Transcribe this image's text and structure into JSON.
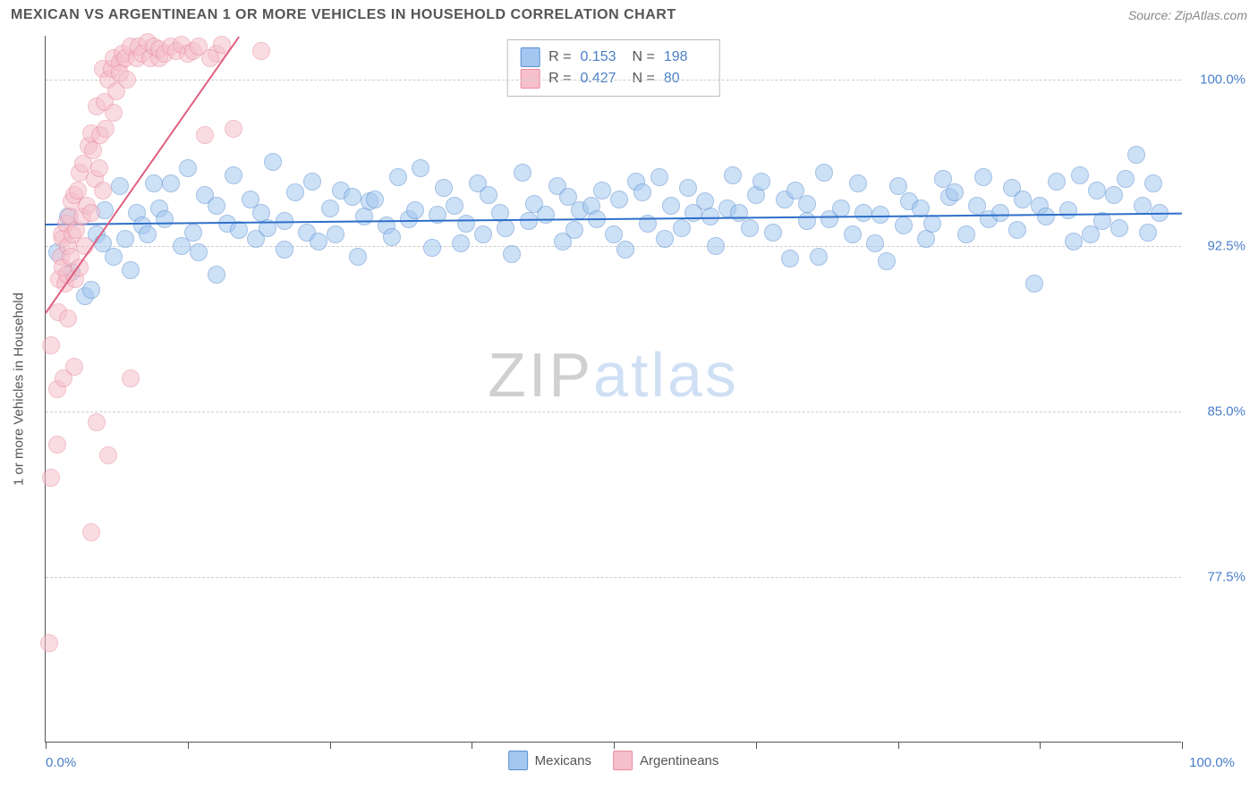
{
  "header": {
    "title": "MEXICAN VS ARGENTINEAN 1 OR MORE VEHICLES IN HOUSEHOLD CORRELATION CHART",
    "source": "Source: ZipAtlas.com"
  },
  "watermark": {
    "part1": "ZIP",
    "part2": "atlas"
  },
  "chart": {
    "type": "scatter",
    "y_axis_title": "1 or more Vehicles in Household",
    "xlim": [
      0,
      100
    ],
    "ylim": [
      70,
      102
    ],
    "x_min_label": "0.0%",
    "x_max_label": "100.0%",
    "y_ticks": [
      77.5,
      85.0,
      92.5,
      100.0
    ],
    "y_tick_labels": [
      "77.5%",
      "85.0%",
      "92.5%",
      "100.0%"
    ],
    "x_tick_positions": [
      0,
      12.5,
      25,
      37.5,
      50,
      62.5,
      75,
      87.5,
      100
    ],
    "grid_color": "#cccccc",
    "background_color": "#ffffff",
    "marker_radius": 10,
    "marker_opacity": 0.55,
    "stats_box": {
      "rows": [
        {
          "swatch_fill": "#a3c7f0",
          "swatch_stroke": "#5a8fd0",
          "r_label": "R =",
          "r_value": "0.153",
          "n_label": "N =",
          "n_value": "198"
        },
        {
          "swatch_fill": "#f5c0cb",
          "swatch_stroke": "#e88ba0",
          "r_label": "R =",
          "r_value": "0.427",
          "n_label": "N =",
          "n_value": "80"
        }
      ]
    },
    "bottom_legend": [
      {
        "swatch_fill": "#a3c7f0",
        "swatch_stroke": "#5a8fd0",
        "label": "Mexicans"
      },
      {
        "swatch_fill": "#f5c0cb",
        "swatch_stroke": "#e88ba0",
        "label": "Argentineans"
      }
    ],
    "series": [
      {
        "name": "Mexicans",
        "color_fill": "#a3c7f0",
        "color_stroke": "#5a8fd0",
        "class": "blue",
        "trend": {
          "x1": 0,
          "y1": 93.5,
          "x2": 100,
          "y2": 94.0,
          "color": "#2e6fc9",
          "width": 2
        },
        "points": [
          [
            1,
            92.2
          ],
          [
            2,
            93.8
          ],
          [
            2.3,
            91.3
          ],
          [
            3.5,
            90.2
          ],
          [
            4,
            90.5
          ],
          [
            4.5,
            93.0
          ],
          [
            5,
            92.6
          ],
          [
            5.2,
            94.1
          ],
          [
            6,
            92.0
          ],
          [
            6.5,
            95.2
          ],
          [
            7,
            92.8
          ],
          [
            7.5,
            91.4
          ],
          [
            8,
            94.0
          ],
          [
            8.5,
            93.4
          ],
          [
            9,
            93.0
          ],
          [
            9.5,
            95.3
          ],
          [
            10,
            94.2
          ],
          [
            10.5,
            93.7
          ],
          [
            11,
            95.3
          ],
          [
            12,
            92.5
          ],
          [
            12.5,
            96.0
          ],
          [
            13,
            93.1
          ],
          [
            13.5,
            92.2
          ],
          [
            14,
            94.8
          ],
          [
            15,
            94.3
          ],
          [
            15,
            91.2
          ],
          [
            16,
            93.5
          ],
          [
            16.5,
            95.7
          ],
          [
            17,
            93.2
          ],
          [
            18,
            94.6
          ],
          [
            18.5,
            92.8
          ],
          [
            19,
            94.0
          ],
          [
            19.5,
            93.3
          ],
          [
            20,
            96.3
          ],
          [
            21,
            93.6
          ],
          [
            21,
            92.3
          ],
          [
            22,
            94.9
          ],
          [
            23,
            93.1
          ],
          [
            23.5,
            95.4
          ],
          [
            24,
            92.7
          ],
          [
            25,
            94.2
          ],
          [
            25.5,
            93.0
          ],
          [
            26,
            95.0
          ],
          [
            27,
            94.7
          ],
          [
            27.5,
            92.0
          ],
          [
            28,
            93.8
          ],
          [
            28.5,
            94.5
          ],
          [
            29,
            94.6
          ],
          [
            30,
            93.4
          ],
          [
            30.5,
            92.9
          ],
          [
            31,
            95.6
          ],
          [
            32,
            93.7
          ],
          [
            32.5,
            94.1
          ],
          [
            33,
            96.0
          ],
          [
            34,
            92.4
          ],
          [
            34.5,
            93.9
          ],
          [
            35,
            95.1
          ],
          [
            36,
            94.3
          ],
          [
            36.5,
            92.6
          ],
          [
            37,
            93.5
          ],
          [
            38,
            95.3
          ],
          [
            38.5,
            93.0
          ],
          [
            39,
            94.8
          ],
          [
            40,
            94.0
          ],
          [
            40.5,
            93.3
          ],
          [
            41,
            92.1
          ],
          [
            42,
            95.8
          ],
          [
            42.5,
            93.6
          ],
          [
            43,
            94.4
          ],
          [
            44,
            93.9
          ],
          [
            45,
            95.2
          ],
          [
            45.5,
            92.7
          ],
          [
            46,
            94.7
          ],
          [
            46.5,
            93.2
          ],
          [
            47,
            94.1
          ],
          [
            48,
            94.3
          ],
          [
            48.5,
            93.7
          ],
          [
            49,
            95.0
          ],
          [
            50,
            93.0
          ],
          [
            50.5,
            94.6
          ],
          [
            51,
            92.3
          ],
          [
            52,
            95.4
          ],
          [
            52.5,
            94.9
          ],
          [
            53,
            93.5
          ],
          [
            54,
            95.6
          ],
          [
            54.5,
            92.8
          ],
          [
            55,
            94.3
          ],
          [
            56,
            93.3
          ],
          [
            56.5,
            95.1
          ],
          [
            57,
            94.0
          ],
          [
            58,
            94.5
          ],
          [
            58.5,
            93.8
          ],
          [
            59,
            92.5
          ],
          [
            60,
            94.2
          ],
          [
            60.5,
            95.7
          ],
          [
            61,
            94.0
          ],
          [
            62,
            93.3
          ],
          [
            62.5,
            94.8
          ],
          [
            63,
            95.4
          ],
          [
            64,
            93.1
          ],
          [
            65,
            94.6
          ],
          [
            65.5,
            91.9
          ],
          [
            66,
            95.0
          ],
          [
            67,
            93.6
          ],
          [
            67,
            94.4
          ],
          [
            68,
            92.0
          ],
          [
            68.5,
            95.8
          ],
          [
            69,
            93.7
          ],
          [
            70,
            94.2
          ],
          [
            71,
            93.0
          ],
          [
            71.5,
            95.3
          ],
          [
            72,
            94.0
          ],
          [
            73,
            92.6
          ],
          [
            73.5,
            93.9
          ],
          [
            74,
            91.8
          ],
          [
            75,
            95.2
          ],
          [
            75.5,
            93.4
          ],
          [
            76,
            94.5
          ],
          [
            77,
            94.2
          ],
          [
            77.5,
            92.8
          ],
          [
            78,
            93.5
          ],
          [
            79,
            95.5
          ],
          [
            79.5,
            94.7
          ],
          [
            80,
            94.9
          ],
          [
            81,
            93.0
          ],
          [
            82,
            94.3
          ],
          [
            82.5,
            95.6
          ],
          [
            83,
            93.7
          ],
          [
            84,
            94.0
          ],
          [
            85,
            95.1
          ],
          [
            85.5,
            93.2
          ],
          [
            86,
            94.6
          ],
          [
            87,
            90.8
          ],
          [
            87.5,
            94.3
          ],
          [
            88,
            93.8
          ],
          [
            89,
            95.4
          ],
          [
            90,
            94.1
          ],
          [
            90.5,
            92.7
          ],
          [
            91,
            95.7
          ],
          [
            92,
            93.0
          ],
          [
            92.5,
            95.0
          ],
          [
            93,
            93.6
          ],
          [
            94,
            94.8
          ],
          [
            94.5,
            93.3
          ],
          [
            95,
            95.5
          ],
          [
            96,
            96.6
          ],
          [
            96.5,
            94.3
          ],
          [
            97,
            93.1
          ],
          [
            97.5,
            95.3
          ],
          [
            98,
            94.0
          ]
        ]
      },
      {
        "name": "Argentineans",
        "color_fill": "#f5c0cb",
        "color_stroke": "#e88ba0",
        "class": "pink",
        "trend": {
          "x1": 0,
          "y1": 89.5,
          "x2": 17,
          "y2": 102,
          "color": "#e06080",
          "width": 2
        },
        "points": [
          [
            0.3,
            74.5
          ],
          [
            0.5,
            82.0
          ],
          [
            0.5,
            88.0
          ],
          [
            1.0,
            83.5
          ],
          [
            1.0,
            86.0
          ],
          [
            1.1,
            89.5
          ],
          [
            1.2,
            91.0
          ],
          [
            1.3,
            92.0
          ],
          [
            1.4,
            93.0
          ],
          [
            1.5,
            92.8
          ],
          [
            1.5,
            91.5
          ],
          [
            1.6,
            86.5
          ],
          [
            1.7,
            90.8
          ],
          [
            1.8,
            93.5
          ],
          [
            1.9,
            91.2
          ],
          [
            2.0,
            89.2
          ],
          [
            2.0,
            92.5
          ],
          [
            2.1,
            93.8
          ],
          [
            2.2,
            92.0
          ],
          [
            2.3,
            94.5
          ],
          [
            2.4,
            93.0
          ],
          [
            2.5,
            87.0
          ],
          [
            2.5,
            94.8
          ],
          [
            2.6,
            91.0
          ],
          [
            2.7,
            93.2
          ],
          [
            2.8,
            95.0
          ],
          [
            3.0,
            95.8
          ],
          [
            3.0,
            91.5
          ],
          [
            3.2,
            93.8
          ],
          [
            3.3,
            96.2
          ],
          [
            3.5,
            92.5
          ],
          [
            3.6,
            94.3
          ],
          [
            3.8,
            97.0
          ],
          [
            4.0,
            97.6
          ],
          [
            4.0,
            94.0
          ],
          [
            4.2,
            96.8
          ],
          [
            4.3,
            95.5
          ],
          [
            4.5,
            84.5
          ],
          [
            4.5,
            98.8
          ],
          [
            4.7,
            96.0
          ],
          [
            4.8,
            97.5
          ],
          [
            5.0,
            100.5
          ],
          [
            5.0,
            95.0
          ],
          [
            5.2,
            99.0
          ],
          [
            5.3,
            97.8
          ],
          [
            5.5,
            100.0
          ],
          [
            5.5,
            83.0
          ],
          [
            5.8,
            100.5
          ],
          [
            6.0,
            98.5
          ],
          [
            6.0,
            101.0
          ],
          [
            6.2,
            99.5
          ],
          [
            6.5,
            100.8
          ],
          [
            6.5,
            100.3
          ],
          [
            6.8,
            101.2
          ],
          [
            7.0,
            101.0
          ],
          [
            7.2,
            100.0
          ],
          [
            7.5,
            101.5
          ],
          [
            7.5,
            86.5
          ],
          [
            8.0,
            101.0
          ],
          [
            8.2,
            101.5
          ],
          [
            8.5,
            101.2
          ],
          [
            9.0,
            101.7
          ],
          [
            9.2,
            101.0
          ],
          [
            9.5,
            101.5
          ],
          [
            10.0,
            101.0
          ],
          [
            10.0,
            101.4
          ],
          [
            10.5,
            101.2
          ],
          [
            11.0,
            101.5
          ],
          [
            11.5,
            101.3
          ],
          [
            12.0,
            101.6
          ],
          [
            12.5,
            101.2
          ],
          [
            13.0,
            101.3
          ],
          [
            13.5,
            101.5
          ],
          [
            14.0,
            97.5
          ],
          [
            15.0,
            101.2
          ],
          [
            16.5,
            97.8
          ],
          [
            14.5,
            101.0
          ],
          [
            15.5,
            101.6
          ],
          [
            19.0,
            101.3
          ],
          [
            4.0,
            79.5
          ]
        ]
      }
    ]
  }
}
